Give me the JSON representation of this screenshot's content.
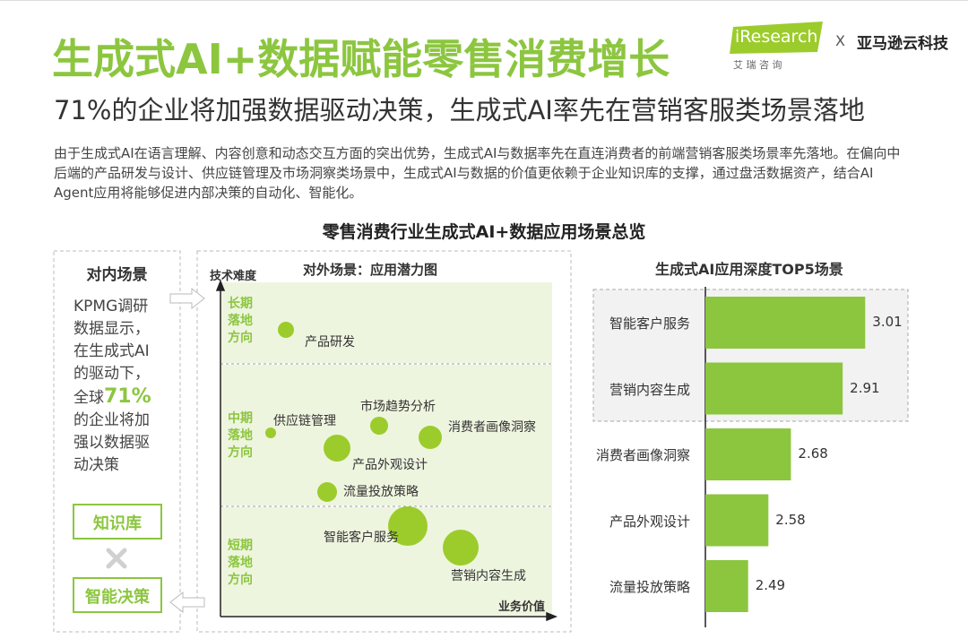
{
  "header": {
    "title": "生成式AI+数据赋能零售消费增长",
    "subtitle": "71%的企业将加强数据驱动决策，生成式AI率先在营销客服类场景落地",
    "logo_brand": "iResearch",
    "logo_sub": "艾 瑞 咨 询",
    "logo_x": "X",
    "partner": "亚马逊云科技"
  },
  "intro": "由于生成式AI在语言理解、内容创意和动态交互方面的突出优势，生成式AI与数据率先在直连消费者的前端营销客服类场景率先落地。在偏向中后端的产品研发与设计、供应链管理及市场洞察类场景中，生成式AI与数据的价值更依赖于企业知识库的支撑，通过盘活数据资产，结合AI Agent应用将能够促进内部决策的自动化、智能化。",
  "section_title": "零售消费行业生成式AI+数据应用场景总览",
  "internal": {
    "title": "对内场景",
    "text_before": "KPMG调研数据显示，在生成式AI的驱动下，全球",
    "highlight": "71%",
    "text_after": "的企业将加强以数据驱动决策",
    "box1": "知识库",
    "box2": "智能决策"
  },
  "external": {
    "title": "对外场景：应用潜力图",
    "y_label": "技术难度",
    "x_label": "业务价值",
    "bands": [
      "长期落地方向",
      "中期落地方向",
      "短期落地方向"
    ],
    "scenarios": [
      "产品研发",
      "供应链管理",
      "市场趋势分析",
      "消费者画像洞察",
      "产品外观设计",
      "流量投放策略",
      "智能客户服务",
      "营销内容生成"
    ]
  },
  "chart_data": {
    "type": "bar",
    "orientation": "horizontal",
    "title": "生成式AI应用深度TOP5场景",
    "categories": [
      "智能客户服务",
      "营销内容生成",
      "消费者画像洞察",
      "产品外观设计",
      "流量投放策略"
    ],
    "values": [
      3.01,
      2.91,
      2.68,
      2.58,
      2.49
    ],
    "color": "#8cc63f",
    "xlim": [
      2.3,
      3.2
    ]
  }
}
